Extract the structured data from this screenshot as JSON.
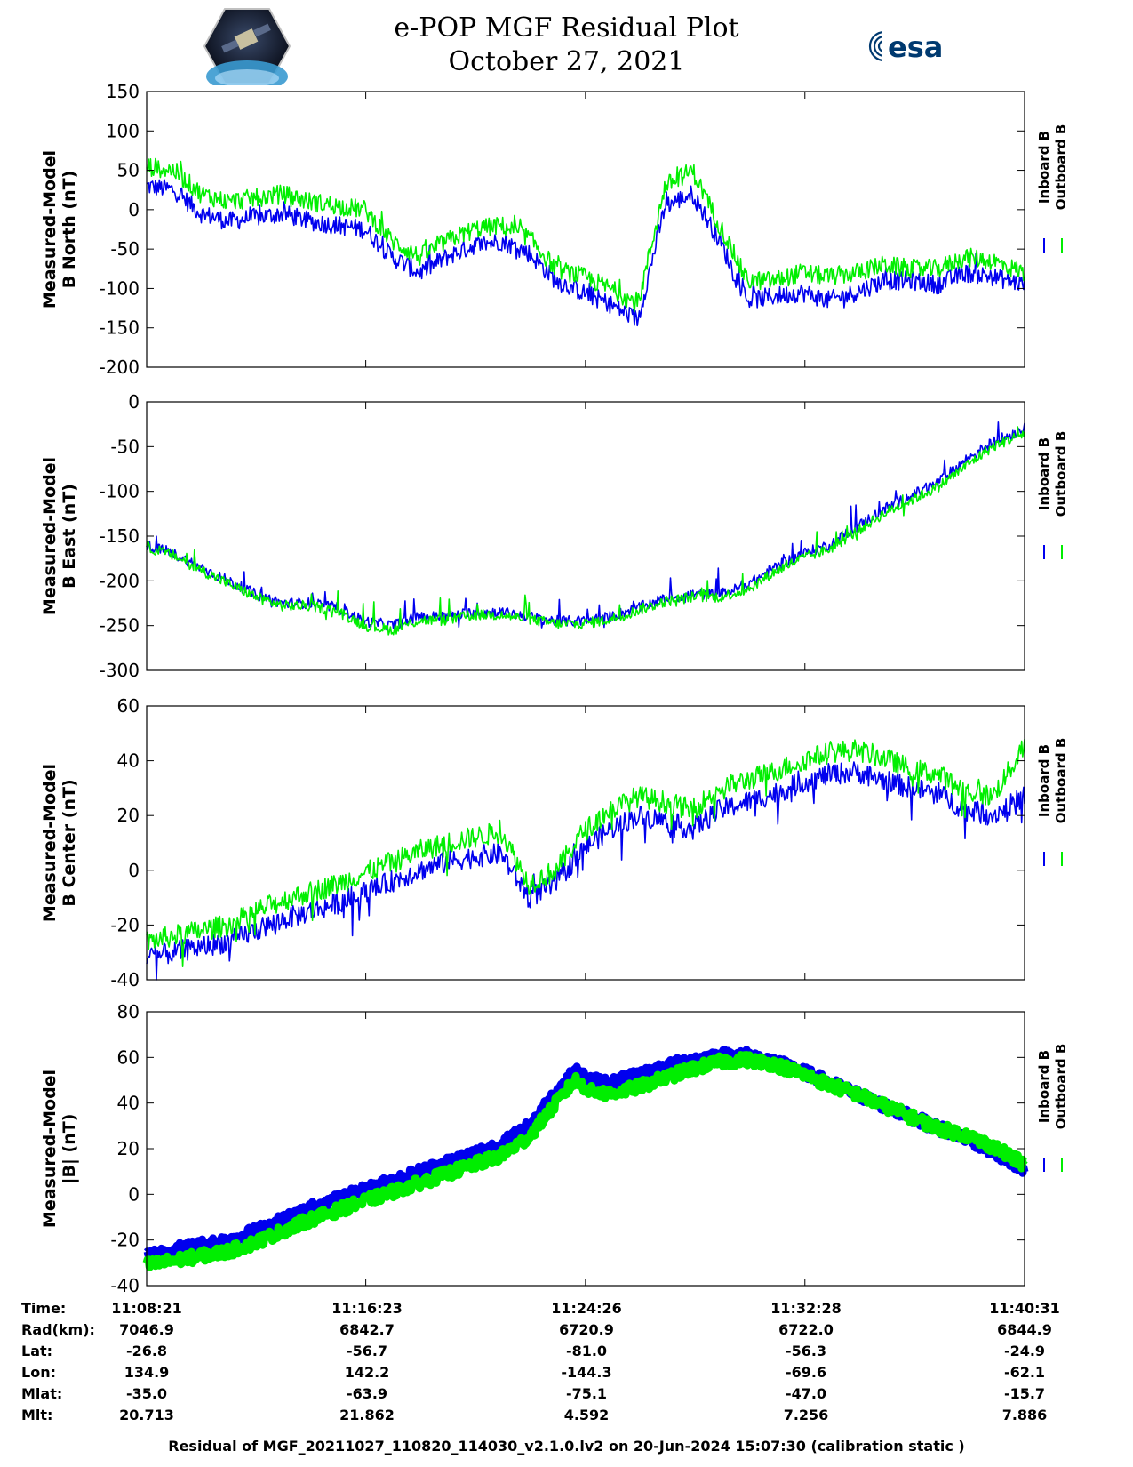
{
  "header": {
    "title_line1": "e-POP MGF Residual Plot",
    "title_line2": "October 27, 2021",
    "left_logo": "cassiope-mission-logo",
    "right_logo": "esa-logo",
    "right_logo_text": "esa"
  },
  "colors": {
    "inboard": "#0000ee",
    "outboard": "#00ee00"
  },
  "chart_data": [
    {
      "type": "line",
      "ylabel_line1": "Measured-Model",
      "ylabel_line2": "B North (nT)",
      "ylim": [
        -200,
        150
      ],
      "yticks": [
        150,
        100,
        50,
        0,
        -50,
        -100,
        -150,
        -200
      ],
      "x_minutes": [
        0,
        8.03,
        16.08,
        24.12,
        32.17
      ],
      "legend": [
        "Inboard B",
        "Outboard B"
      ],
      "series": [
        {
          "name": "Inboard B",
          "x": [
            0,
            1,
            2,
            3,
            4,
            5,
            6,
            7,
            8,
            9,
            10,
            11,
            12,
            13,
            14,
            15,
            16,
            17,
            18,
            19,
            20,
            21,
            22,
            23,
            24,
            25,
            26,
            27,
            28,
            29,
            30,
            31,
            32.17
          ],
          "y": [
            30,
            25,
            -5,
            -15,
            -10,
            -5,
            -15,
            -20,
            -25,
            -60,
            -80,
            -60,
            -45,
            -40,
            -55,
            -90,
            -105,
            -120,
            -140,
            5,
            20,
            -40,
            -115,
            -110,
            -105,
            -115,
            -105,
            -90,
            -90,
            -95,
            -80,
            -85,
            -95
          ]
        },
        {
          "name": "Outboard B",
          "x": [
            0,
            1,
            2,
            3,
            4,
            5,
            6,
            7,
            8,
            9,
            10,
            11,
            12,
            13,
            14,
            15,
            16,
            17,
            18,
            19,
            20,
            21,
            22,
            23,
            24,
            25,
            26,
            27,
            28,
            29,
            30,
            31,
            32.17
          ],
          "y": [
            55,
            50,
            20,
            10,
            15,
            20,
            10,
            5,
            0,
            -40,
            -60,
            -40,
            -25,
            -20,
            -35,
            -75,
            -85,
            -100,
            -120,
            30,
            50,
            -20,
            -90,
            -90,
            -80,
            -85,
            -80,
            -70,
            -75,
            -75,
            -60,
            -65,
            -80
          ]
        }
      ]
    },
    {
      "type": "line",
      "ylabel_line1": "Measured-Model",
      "ylabel_line2": "B East (nT)",
      "ylim": [
        -300,
        0
      ],
      "yticks": [
        0,
        -50,
        -100,
        -150,
        -200,
        -250,
        -300
      ],
      "x_minutes": [
        0,
        8.03,
        16.08,
        24.12,
        32.17
      ],
      "legend": [
        "Inboard B",
        "Outboard B"
      ],
      "series": [
        {
          "name": "Inboard B",
          "x": [
            0,
            1,
            2,
            3,
            4,
            5,
            6,
            7,
            8,
            9,
            10,
            11,
            12,
            13,
            14,
            15,
            16,
            17,
            18,
            19,
            20,
            21,
            22,
            23,
            24,
            25,
            26,
            27,
            28,
            29,
            30,
            31,
            32.17
          ],
          "y": [
            -160,
            -170,
            -185,
            -200,
            -215,
            -225,
            -225,
            -230,
            -245,
            -250,
            -240,
            -240,
            -235,
            -235,
            -240,
            -245,
            -245,
            -240,
            -230,
            -220,
            -215,
            -215,
            -205,
            -185,
            -170,
            -160,
            -140,
            -120,
            -105,
            -90,
            -65,
            -45,
            -30
          ]
        },
        {
          "name": "Outboard B",
          "x": [
            0,
            1,
            2,
            3,
            4,
            5,
            6,
            7,
            8,
            9,
            10,
            11,
            12,
            13,
            14,
            15,
            16,
            17,
            18,
            19,
            20,
            21,
            22,
            23,
            24,
            25,
            26,
            27,
            28,
            29,
            30,
            31,
            32.17
          ],
          "y": [
            -162,
            -172,
            -188,
            -203,
            -218,
            -228,
            -228,
            -234,
            -250,
            -255,
            -244,
            -244,
            -238,
            -238,
            -243,
            -248,
            -248,
            -243,
            -233,
            -223,
            -218,
            -218,
            -210,
            -190,
            -175,
            -165,
            -145,
            -125,
            -110,
            -95,
            -72,
            -50,
            -35
          ]
        }
      ]
    },
    {
      "type": "line",
      "ylabel_line1": "Measured-Model",
      "ylabel_line2": "B Center (nT)",
      "ylim": [
        -40,
        60
      ],
      "yticks": [
        60,
        40,
        20,
        0,
        -20,
        -40
      ],
      "x_minutes": [
        0,
        8.03,
        16.08,
        24.12,
        32.17
      ],
      "legend": [
        "Inboard B",
        "Outboard B"
      ],
      "series": [
        {
          "name": "Inboard B",
          "x": [
            0,
            1,
            2,
            3,
            4,
            5,
            6,
            7,
            8,
            9,
            10,
            11,
            12,
            13,
            14,
            15,
            16,
            17,
            18,
            19,
            20,
            21,
            22,
            23,
            24,
            25,
            26,
            27,
            28,
            29,
            30,
            31,
            32.17
          ],
          "y": [
            -32,
            -30,
            -28,
            -26,
            -22,
            -18,
            -15,
            -12,
            -8,
            -4,
            0,
            3,
            5,
            6,
            -10,
            -5,
            8,
            15,
            20,
            18,
            15,
            22,
            25,
            28,
            32,
            35,
            36,
            33,
            30,
            28,
            22,
            20,
            27
          ]
        },
        {
          "name": "Outboard B",
          "x": [
            0,
            1,
            2,
            3,
            4,
            5,
            6,
            7,
            8,
            9,
            10,
            11,
            12,
            13,
            14,
            15,
            16,
            17,
            18,
            19,
            20,
            21,
            22,
            23,
            24,
            25,
            26,
            27,
            28,
            29,
            30,
            31,
            32.17
          ],
          "y": [
            -26,
            -24,
            -22,
            -20,
            -15,
            -11,
            -8,
            -5,
            -1,
            3,
            7,
            10,
            12,
            14,
            -5,
            0,
            14,
            22,
            27,
            25,
            22,
            30,
            33,
            36,
            40,
            43,
            44,
            41,
            37,
            35,
            29,
            27,
            45
          ]
        }
      ]
    },
    {
      "type": "line",
      "ylabel_line1": "Measured-Model",
      "ylabel_line2": "|B| (nT)",
      "ylim": [
        -40,
        80
      ],
      "yticks": [
        80,
        60,
        40,
        20,
        0,
        -20,
        -40
      ],
      "x_minutes": [
        0,
        8.03,
        16.08,
        24.12,
        32.17
      ],
      "legend": [
        "Inboard B",
        "Outboard B"
      ],
      "series": [
        {
          "name": "Inboard B",
          "x": [
            0,
            1,
            2,
            3,
            4,
            5,
            6,
            7,
            8,
            9,
            10,
            11,
            12,
            13,
            14,
            15,
            15.7,
            16.3,
            17,
            18,
            19,
            20,
            21,
            22,
            23,
            24,
            25,
            26,
            27,
            28,
            29,
            30,
            31,
            32.17
          ],
          "y": [
            -27,
            -24,
            -22,
            -20,
            -16,
            -11,
            -6,
            -2,
            2,
            6,
            10,
            14,
            18,
            22,
            30,
            45,
            54,
            50,
            49,
            52,
            56,
            59,
            61,
            61,
            58,
            54,
            49,
            44,
            39,
            34,
            29,
            25,
            19,
            10
          ]
        },
        {
          "name": "Outboard B",
          "x": [
            0,
            1,
            2,
            3,
            4,
            5,
            6,
            7,
            8,
            9,
            10,
            11,
            12,
            13,
            14,
            15,
            15.7,
            16.3,
            17,
            18,
            19,
            20,
            21,
            22,
            23,
            24,
            25,
            26,
            27,
            28,
            29,
            30,
            31,
            32.17
          ],
          "y": [
            -31,
            -29,
            -27,
            -25,
            -21,
            -16,
            -11,
            -7,
            -3,
            1,
            5,
            9,
            13,
            17,
            25,
            40,
            50,
            45,
            44,
            47,
            51,
            55,
            58,
            59,
            57,
            53,
            48,
            44,
            39,
            34,
            29,
            26,
            21,
            13
          ]
        }
      ]
    }
  ],
  "info_table": {
    "labels": [
      "Time:",
      "Rad(km):",
      "Lat:",
      "Lon:",
      "Mlat:",
      "Mlt:"
    ],
    "columns": [
      [
        "11:08:21",
        "7046.9",
        "-26.8",
        "134.9",
        "-35.0",
        "20.713"
      ],
      [
        "11:16:23",
        "6842.7",
        "-56.7",
        "142.2",
        "-63.9",
        "21.862"
      ],
      [
        "11:24:26",
        "6720.9",
        "-81.0",
        "-144.3",
        "-75.1",
        "4.592"
      ],
      [
        "11:32:28",
        "6722.0",
        "-56.3",
        "-69.6",
        "-47.0",
        "7.256"
      ],
      [
        "11:40:31",
        "6844.9",
        "-24.9",
        "-62.1",
        "-15.7",
        "7.886"
      ]
    ]
  },
  "footer": "Residual of MGF_20211027_110820_114030_v2.1.0.lv2 on 20-Jun-2024 15:07:30 (calibration static )"
}
